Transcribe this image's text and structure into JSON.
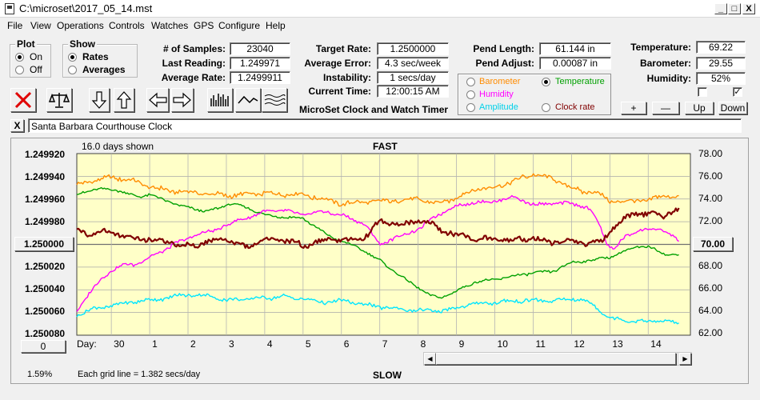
{
  "window": {
    "title": "C:\\microset\\2017_05_14.mst",
    "minimize": "_",
    "maximize": "□",
    "close": "X"
  },
  "menu": [
    "File",
    "View",
    "Operations",
    "Controls",
    "Watches",
    "GPS",
    "Configure",
    "Help"
  ],
  "plot_group": {
    "title": "Plot",
    "on": "On",
    "off": "Off",
    "selected": "On"
  },
  "show_group": {
    "title": "Show",
    "rates": "Rates",
    "averages": "Averages",
    "selected": "Rates"
  },
  "stats": {
    "samples_label": "# of Samples:",
    "samples": "23040",
    "last_label": "Last Reading:",
    "last": "1.249971",
    "avg_label": "Average Rate:",
    "avg": "1.2499911",
    "target_label": "Target Rate:",
    "target": "1.2500000",
    "error_label": "Average Error:",
    "error": "4.3 sec/week",
    "instability_label": "Instability:",
    "instability": "1 secs/day",
    "time_label": "Current Time:",
    "time": "12:00:15 AM",
    "pend_length_label": "Pend Length:",
    "pend_length": "61.144 in",
    "pend_adjust_label": "Pend Adjust:",
    "pend_adjust": "0.00087 in",
    "temp_label": "Temperature:",
    "temp": "69.22",
    "baro_label": "Barometer:",
    "baro": "29.55",
    "humidity_label": "Humidity:",
    "humidity": "52%"
  },
  "app_title": "MicroSet Clock and Watch Timer",
  "aux": {
    "barometer": "Barometer",
    "temperature": "Temperature",
    "humidity": "Humidity",
    "amplitude": "Amplitude",
    "clock_rate": "Clock rate",
    "selected": "Temperature"
  },
  "adjust_buttons": {
    "plus": "+",
    "minus": "—",
    "up": "Up",
    "down": "Down"
  },
  "clear_button": "X",
  "clock_name": "Santa Barbara Courthouse Clock",
  "colors": {
    "barometer": "#ff8c00",
    "temperature": "#00a000",
    "humidity": "#ff00ff",
    "amplitude": "#00e5ff",
    "rate": "#800000",
    "plot_bg": "#ffffc8"
  },
  "chart_data": {
    "type": "line",
    "days_shown": "16.0 days shown",
    "top_label": "FAST",
    "bottom_label": "SLOW",
    "grid_note": "Each grid line = 1.382 secs/day",
    "left_ticks": [
      "1.249920",
      "1.249940",
      "1.249960",
      "1.249980",
      "1.250000",
      "1.250020",
      "1.250040",
      "1.250060",
      "1.250080"
    ],
    "center_value": "1.250000",
    "right_ticks": [
      "78.00",
      "76.00",
      "74.00",
      "72.00",
      "70.00",
      "68.00",
      "66.00",
      "64.00",
      "62.00"
    ],
    "right_center_value": "70.00",
    "left_ylim": [
      1.24992,
      1.25008
    ],
    "right_ylim": [
      62,
      78
    ],
    "x_label": "Day:",
    "x_ticks": [
      "30",
      "1",
      "2",
      "3",
      "4",
      "5",
      "6",
      "7",
      "8",
      "9",
      "10",
      "11",
      "12",
      "13",
      "14"
    ],
    "x_range": [
      -0.9,
      15.1
    ],
    "x_tick_days": [
      0,
      1,
      2,
      3,
      4,
      5,
      6,
      7,
      8,
      9,
      10,
      11,
      12,
      13,
      14
    ],
    "zero_button": "0",
    "percent": "1.59%",
    "series": [
      {
        "key": "barometer",
        "axis": "right",
        "noise": 0.35,
        "x": [
          -0.9,
          -0.5,
          0,
          0.5,
          1,
          1.5,
          2,
          3,
          4,
          5,
          5.5,
          6,
          6.5,
          7,
          8,
          8.5,
          9,
          9.5,
          10,
          11,
          11.5,
          12,
          12.3,
          12.6,
          13,
          13.5,
          14,
          14.5,
          14.8
        ],
        "y": [
          75.2,
          75.6,
          75.9,
          75.7,
          75.1,
          74.7,
          74.6,
          74.3,
          74.5,
          74.4,
          74.0,
          73.6,
          73.7,
          73.8,
          74.0,
          73.6,
          74.1,
          74.9,
          75.0,
          76.2,
          75.8,
          75.0,
          74.6,
          74.7,
          73.8,
          73.8,
          73.9,
          74.3,
          74.3
        ]
      },
      {
        "key": "temperature",
        "axis": "right",
        "noise": 0.18,
        "x": [
          -0.9,
          -0.5,
          0,
          0.3,
          0.7,
          1,
          1.4,
          1.8,
          2.2,
          2.5,
          2.8,
          3.1,
          3.5,
          4,
          4.5,
          5,
          5.3,
          5.6,
          6,
          6.5,
          7,
          7.5,
          8,
          8.3,
          8.6,
          9,
          9.5,
          10,
          10.5,
          11,
          11.5,
          12,
          12.5,
          13,
          13.4,
          13.7,
          14,
          14.5,
          14.8
        ],
        "y": [
          74.4,
          74.8,
          74.9,
          74.6,
          74.2,
          74.4,
          73.9,
          73.4,
          73.1,
          72.9,
          73.2,
          73.6,
          73.3,
          72.6,
          72.4,
          72.3,
          71.6,
          70.9,
          70.3,
          69.6,
          68.6,
          67.3,
          66.2,
          65.5,
          65.3,
          65.9,
          66.7,
          66.9,
          67.2,
          67.5,
          67.6,
          68.4,
          68.6,
          68.9,
          69.4,
          69.8,
          69.8,
          69.1,
          69.1
        ]
      },
      {
        "key": "humidity",
        "axis": "right",
        "noise": 0.25,
        "x": [
          -0.9,
          -0.6,
          -0.3,
          0,
          0.3,
          0.6,
          1,
          1.3,
          1.6,
          2,
          2.3,
          2.6,
          3,
          3.3,
          3.6,
          4,
          4.5,
          5,
          5.5,
          6,
          6.3,
          6.6,
          7,
          7.5,
          8,
          8.5,
          9,
          9.5,
          10,
          10.5,
          11,
          11.5,
          12,
          12.4,
          12.7,
          12.9,
          13.1,
          13.4,
          13.7,
          14,
          14.4,
          14.8
        ],
        "y": [
          64.1,
          65.6,
          66.8,
          67.7,
          68.2,
          68.2,
          68.9,
          69.3,
          70.0,
          70.5,
          71.0,
          71.1,
          71.7,
          72.1,
          72.4,
          72.9,
          73.0,
          72.6,
          72.9,
          72.6,
          72.2,
          71.8,
          70.0,
          70.7,
          71.3,
          72.6,
          73.4,
          73.7,
          73.8,
          74.2,
          73.5,
          73.6,
          73.6,
          73.3,
          72.0,
          70.2,
          69.5,
          70.7,
          71.2,
          71.3,
          71.3,
          70.3
        ]
      },
      {
        "key": "amplitude",
        "axis": "right",
        "noise": 0.3,
        "x": [
          -0.9,
          -0.5,
          0,
          0.5,
          1,
          1.5,
          2,
          2.5,
          3,
          3.5,
          4,
          4.5,
          5,
          5.5,
          6,
          6.5,
          7,
          7.5,
          8,
          8.5,
          9,
          9.5,
          10,
          10.5,
          11,
          11.5,
          12,
          12.3,
          12.6,
          13,
          13.5,
          14,
          14.5,
          14.8
        ],
        "y": [
          63.8,
          64.3,
          64.6,
          64.9,
          65.1,
          65.3,
          65.6,
          65.5,
          65.1,
          65.2,
          65.3,
          65.4,
          65.2,
          64.9,
          65.0,
          64.8,
          64.5,
          64.3,
          64.2,
          64.1,
          64.4,
          64.8,
          64.9,
          65.0,
          65.1,
          65.0,
          65.2,
          65.1,
          64.6,
          63.5,
          63.3,
          63.2,
          63.3,
          63.0
        ]
      },
      {
        "key": "rate",
        "axis": "left",
        "noise": 4e-06,
        "x": [
          -0.9,
          -0.5,
          0,
          0.5,
          1,
          1.5,
          2,
          2.5,
          3,
          3.5,
          4,
          4.5,
          5,
          5.5,
          6,
          6.3,
          6.6,
          7,
          7.3,
          7.6,
          8,
          8.3,
          8.6,
          9,
          9.5,
          10,
          10.5,
          11,
          11.5,
          12,
          12.5,
          12.8,
          13,
          13.3,
          13.6,
          14,
          14.4,
          14.8
        ],
        "y": [
          1.249989,
          1.24999,
          1.249988,
          1.249994,
          1.249996,
          1.249998,
          1.250002,
          1.249998,
          1.249995,
          1.250003,
          1.249996,
          1.249996,
          1.250001,
          1.249997,
          1.249995,
          1.249997,
          1.249994,
          1.24998,
          1.249981,
          1.249983,
          1.249979,
          1.249981,
          1.249988,
          1.249991,
          1.249995,
          1.249995,
          1.249997,
          1.249994,
          1.249998,
          1.249998,
          1.249999,
          1.249998,
          1.249988,
          1.24998,
          1.249973,
          1.249973,
          1.249974,
          1.24997
        ]
      }
    ]
  }
}
